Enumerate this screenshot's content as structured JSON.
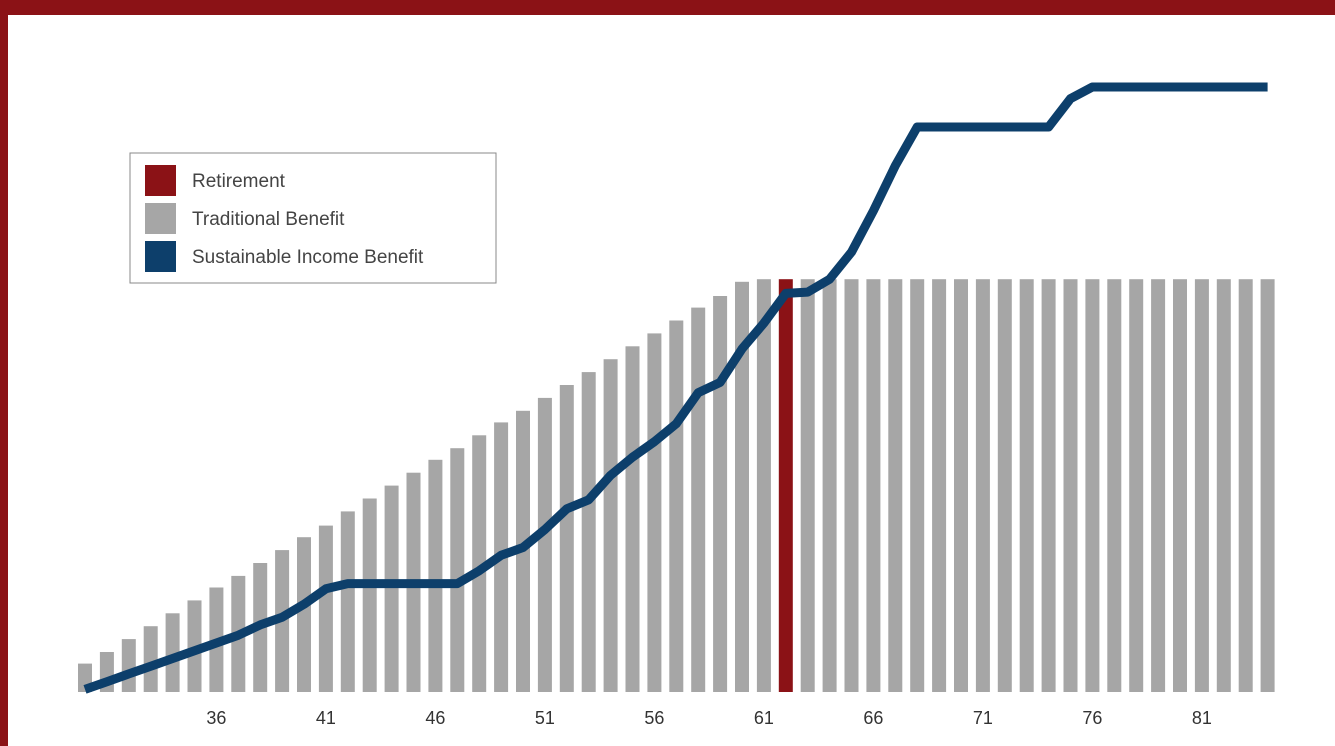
{
  "colors": {
    "frame": "#8b1216",
    "retirement": "#8b1216",
    "traditional": "#a6a6a6",
    "sustainable": "#0d3f6b",
    "background": "#ffffff"
  },
  "chart_data": {
    "type": "bar",
    "x_start_age": 30,
    "x_end_age": 84,
    "retirement_age": 62,
    "xticks": [
      "36",
      "41",
      "46",
      "51",
      "56",
      "61",
      "66",
      "71",
      "76",
      "81"
    ],
    "xtick_values": [
      36,
      41,
      46,
      51,
      56,
      61,
      66,
      71,
      76,
      81
    ],
    "ylim": [
      0,
      150
    ],
    "legend": {
      "position": "upper-left",
      "entries": [
        {
          "label": "Retirement",
          "color": "#8b1216"
        },
        {
          "label": "Traditional Benefit",
          "color": "#a6a6a6"
        },
        {
          "label": "Sustainable Income Benefit",
          "color": "#0d3f6b"
        }
      ]
    },
    "series": [
      {
        "name": "Traditional Benefit",
        "type": "bar",
        "x": [
          30,
          31,
          32,
          33,
          34,
          35,
          36,
          37,
          38,
          39,
          40,
          41,
          42,
          43,
          44,
          45,
          46,
          47,
          48,
          49,
          50,
          51,
          52,
          53,
          54,
          55,
          56,
          57,
          58,
          59,
          60,
          61,
          62,
          63,
          64,
          65,
          66,
          67,
          68,
          69,
          70,
          71,
          72,
          73,
          74,
          75,
          76,
          77,
          78,
          79,
          80,
          81,
          82,
          83,
          84
        ],
        "values": [
          2.2,
          3.1,
          4.1,
          5.1,
          6.1,
          7.1,
          8.1,
          9.0,
          10.0,
          11.0,
          12.0,
          12.9,
          14.0,
          15.0,
          16.0,
          17.0,
          18.0,
          18.9,
          19.9,
          20.9,
          21.8,
          22.8,
          23.8,
          24.8,
          25.8,
          26.8,
          27.8,
          28.8,
          29.8,
          30.7,
          31.8,
          32.0,
          32.0,
          32.0,
          32.0,
          32.0,
          32.0,
          32.0,
          32.0,
          32.0,
          32.0,
          32.0,
          32.0,
          32.0,
          32.0,
          32.0,
          32.0,
          32.0,
          32.0,
          32.0,
          32.0,
          32.0,
          32.0,
          32.0,
          32.0
        ]
      },
      {
        "name": "Sustainable Income Benefit",
        "type": "line",
        "x": [
          30,
          31,
          32,
          33,
          34,
          35,
          36,
          37,
          38,
          39,
          40,
          41,
          42,
          43,
          44,
          45,
          46,
          47,
          48,
          49,
          50,
          51,
          52,
          53,
          54,
          55,
          56,
          57,
          58,
          59,
          60,
          61,
          62,
          63,
          64,
          65,
          66,
          67,
          68,
          69,
          70,
          71,
          72,
          73,
          74,
          75,
          76,
          77,
          78,
          79,
          80,
          81,
          82,
          83,
          84
        ],
        "values": [
          0.2,
          0.8,
          1.4,
          2.0,
          2.6,
          3.2,
          3.8,
          4.4,
          5.2,
          5.8,
          6.8,
          8.0,
          8.4,
          8.4,
          8.4,
          8.4,
          8.4,
          8.4,
          9.4,
          10.6,
          11.2,
          12.6,
          14.2,
          14.9,
          16.8,
          18.2,
          19.4,
          20.8,
          23.2,
          24.0,
          26.6,
          28.6,
          30.9,
          31.0,
          32.0,
          34.1,
          37.3,
          40.8,
          43.8,
          43.8,
          43.8,
          43.8,
          43.8,
          43.8,
          43.8,
          46.0,
          46.9,
          46.9,
          46.9,
          46.9,
          46.9,
          46.9,
          46.9,
          46.9,
          46.9
        ]
      }
    ]
  }
}
